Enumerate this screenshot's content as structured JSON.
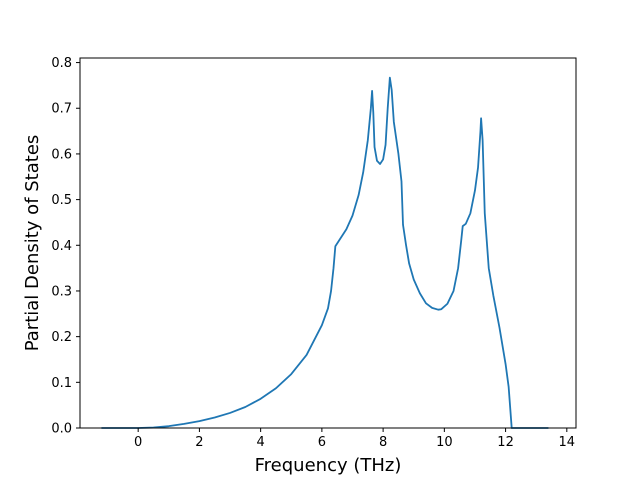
{
  "chart_data": {
    "type": "line",
    "title": "",
    "xlabel": "Frequency (THz)",
    "ylabel": "Partial Density of States",
    "xlim": [
      -1.9,
      14.3
    ],
    "ylim": [
      0.0,
      0.81
    ],
    "x_ticks": [
      0,
      2,
      4,
      6,
      8,
      10,
      12,
      14
    ],
    "x_tick_labels": [
      "0",
      "2",
      "4",
      "6",
      "8",
      "10",
      "12",
      "14"
    ],
    "y_ticks": [
      0.0,
      0.1,
      0.2,
      0.3,
      0.4,
      0.5,
      0.6,
      0.7,
      0.8
    ],
    "y_tick_labels": [
      "0.0",
      "0.1",
      "0.2",
      "0.3",
      "0.4",
      "0.5",
      "0.6",
      "0.7",
      "0.8"
    ],
    "grid": false,
    "legend": "none",
    "series": [
      {
        "color": "#1f77b4",
        "points": [
          [
            -1.2,
            0.0
          ],
          [
            0.0,
            0.0
          ],
          [
            0.5,
            0.001
          ],
          [
            1.0,
            0.004
          ],
          [
            1.5,
            0.009
          ],
          [
            2.0,
            0.015
          ],
          [
            2.5,
            0.023
          ],
          [
            3.0,
            0.033
          ],
          [
            3.5,
            0.046
          ],
          [
            4.0,
            0.064
          ],
          [
            4.5,
            0.087
          ],
          [
            5.0,
            0.118
          ],
          [
            5.5,
            0.16
          ],
          [
            6.0,
            0.225
          ],
          [
            6.2,
            0.262
          ],
          [
            6.3,
            0.3
          ],
          [
            6.38,
            0.35
          ],
          [
            6.44,
            0.398
          ],
          [
            6.8,
            0.435
          ],
          [
            7.0,
            0.465
          ],
          [
            7.2,
            0.51
          ],
          [
            7.35,
            0.56
          ],
          [
            7.5,
            0.63
          ],
          [
            7.6,
            0.7
          ],
          [
            7.64,
            0.738
          ],
          [
            7.68,
            0.69
          ],
          [
            7.72,
            0.615
          ],
          [
            7.8,
            0.585
          ],
          [
            7.9,
            0.578
          ],
          [
            8.0,
            0.588
          ],
          [
            8.08,
            0.62
          ],
          [
            8.15,
            0.7
          ],
          [
            8.22,
            0.767
          ],
          [
            8.28,
            0.74
          ],
          [
            8.35,
            0.67
          ],
          [
            8.5,
            0.6
          ],
          [
            8.6,
            0.54
          ],
          [
            8.65,
            0.445
          ],
          [
            8.75,
            0.4
          ],
          [
            8.85,
            0.36
          ],
          [
            9.0,
            0.325
          ],
          [
            9.2,
            0.295
          ],
          [
            9.4,
            0.273
          ],
          [
            9.6,
            0.263
          ],
          [
            9.8,
            0.259
          ],
          [
            9.9,
            0.26
          ],
          [
            10.1,
            0.272
          ],
          [
            10.3,
            0.3
          ],
          [
            10.45,
            0.35
          ],
          [
            10.55,
            0.41
          ],
          [
            10.6,
            0.442
          ],
          [
            10.7,
            0.447
          ],
          [
            10.85,
            0.47
          ],
          [
            11.0,
            0.52
          ],
          [
            11.1,
            0.57
          ],
          [
            11.18,
            0.65
          ],
          [
            11.2,
            0.678
          ],
          [
            11.25,
            0.63
          ],
          [
            11.32,
            0.47
          ],
          [
            11.45,
            0.35
          ],
          [
            11.6,
            0.29
          ],
          [
            11.8,
            0.22
          ],
          [
            12.0,
            0.14
          ],
          [
            12.1,
            0.09
          ],
          [
            12.2,
            0.0
          ],
          [
            13.4,
            0.0
          ]
        ]
      }
    ]
  }
}
